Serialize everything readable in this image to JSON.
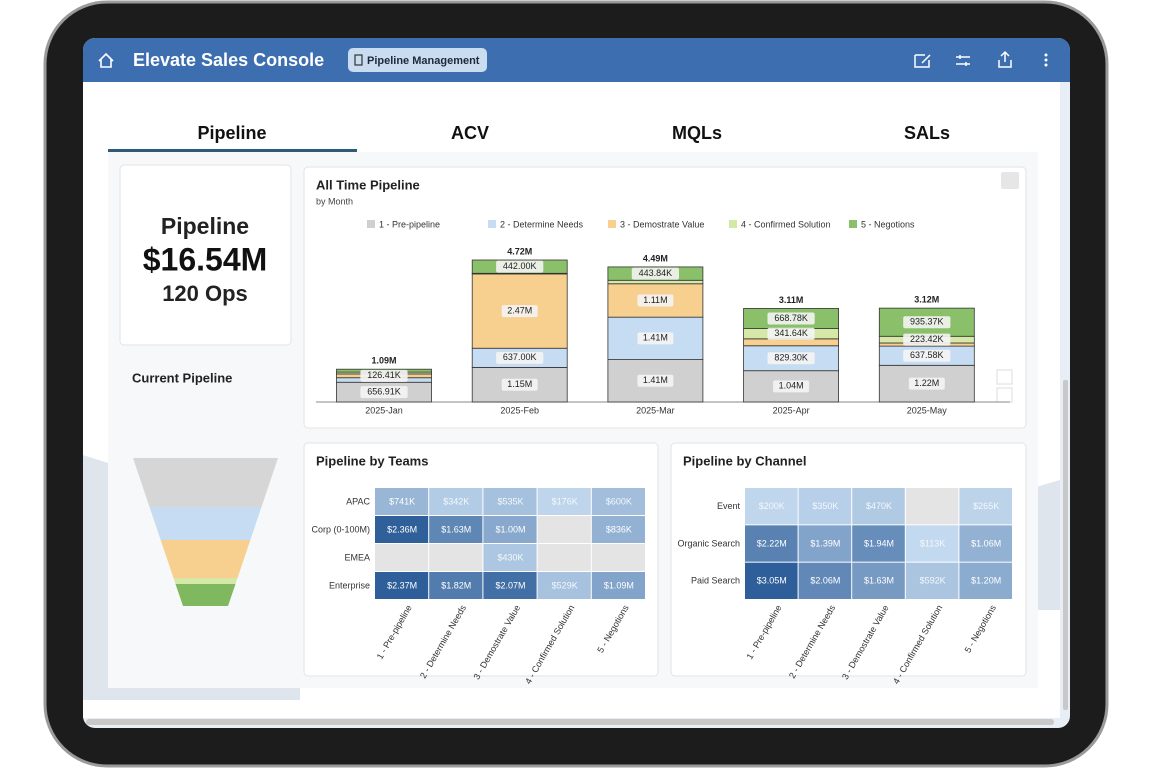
{
  "header": {
    "title": "Elevate Sales Console",
    "chip": "Pipeline Management"
  },
  "tabs": [
    "Pipeline",
    "ACV",
    "MQLs",
    "SALs"
  ],
  "kpi": {
    "label": "Pipeline",
    "value": "$16.54M",
    "count": "120 Ops"
  },
  "funnel_title": "Current Pipeline",
  "chart_data": [
    {
      "type": "bar",
      "stacked": true,
      "title": "All Time Pipeline",
      "subtitle": "by Month",
      "categories": [
        "2025-Jan",
        "2025-Feb",
        "2025-Mar",
        "2025-Apr",
        "2025-May"
      ],
      "series": [
        {
          "name": "1 - Pre-pipeline",
          "color": "#d0d0d0",
          "values": [
            656910,
            1150000,
            1410000,
            1040000,
            1220000
          ],
          "value_labels": [
            "656.91K",
            "1.15M",
            "1.41M",
            "1.04M",
            "1.22M"
          ]
        },
        {
          "name": "2 - Determine Needs",
          "color": "#c5dcf2",
          "values": [
            150000,
            637000,
            1410000,
            829300,
            637580
          ],
          "value_labels": [
            null,
            "637.00K",
            "1.41M",
            "829.30K",
            "637.58K"
          ]
        },
        {
          "name": "3 - Demostrate Value",
          "color": "#f7cf8f",
          "values": [
            126410,
            2470000,
            1110000,
            230000,
            104000
          ],
          "value_labels": [
            "126.41K",
            "2.47M",
            "1.11M",
            null,
            null
          ]
        },
        {
          "name": "4 - Confirmed Solution",
          "color": "#d5e8a8",
          "values": [
            60000,
            21000,
            116000,
            341640,
            223420
          ],
          "value_labels": [
            null,
            null,
            null,
            "341.64K",
            "223.42K"
          ]
        },
        {
          "name": "5 - Negotions",
          "color": "#8bc06a",
          "values": [
            97000,
            442000,
            443840,
            668780,
            935370
          ],
          "value_labels": [
            null,
            "442.00K",
            "443.84K",
            "668.78K",
            "935.37K"
          ]
        }
      ],
      "totals": [
        1090000,
        4720000,
        4490000,
        3110000,
        3120000
      ],
      "total_labels": [
        "1.09M",
        "4.72M",
        "4.49M",
        "3.11M",
        "3.12M"
      ],
      "legend": "top"
    },
    {
      "type": "heatmap",
      "title": "Pipeline by Teams",
      "rows": [
        "APAC",
        "Corp (0-100M)",
        "EMEA",
        "Enterprise"
      ],
      "columns": [
        "1 - Pre-pipeline",
        "2 - Determine Needs",
        "3 - Demostrate Value",
        "4 - Confirmed Solution",
        "5 - Negotions"
      ],
      "values": [
        [
          741000,
          342000,
          535000,
          176000,
          600000
        ],
        [
          2360000,
          1630000,
          1000000,
          null,
          836000
        ],
        [
          null,
          null,
          430000,
          null,
          null
        ],
        [
          2370000,
          1820000,
          2070000,
          529000,
          1090000
        ]
      ],
      "value_labels": [
        [
          "$741K",
          "$342K",
          "$535K",
          "$176K",
          "$600K"
        ],
        [
          "$2.36M",
          "$1.63M",
          "$1.00M",
          null,
          "$836K"
        ],
        [
          null,
          null,
          "$430K",
          null,
          null
        ],
        [
          "$2.37M",
          "$1.82M",
          "$2.07M",
          "$529K",
          "$1.09M"
        ]
      ]
    },
    {
      "type": "heatmap",
      "title": "Pipeline by Channel",
      "rows": [
        "Event",
        "Organic Search",
        "Paid Search"
      ],
      "columns": [
        "1 - Pre-pipeline",
        "2 - Determine Needs",
        "3 - Demostrate Value",
        "4 - Confirmed Solution",
        "5 - Negotions"
      ],
      "values": [
        [
          200000,
          350000,
          470000,
          null,
          265000
        ],
        [
          2220000,
          1390000,
          1940000,
          113000,
          1060000
        ],
        [
          3050000,
          2060000,
          1630000,
          592000,
          1200000
        ]
      ],
      "value_labels": [
        [
          "$200K",
          "$350K",
          "$470K",
          null,
          "$265K"
        ],
        [
          "$2.22M",
          "$1.39M",
          "$1.94M",
          "$113K",
          "$1.06M"
        ],
        [
          "$3.05M",
          "$2.06M",
          "$1.63M",
          "$592K",
          "$1.20M"
        ]
      ]
    }
  ]
}
